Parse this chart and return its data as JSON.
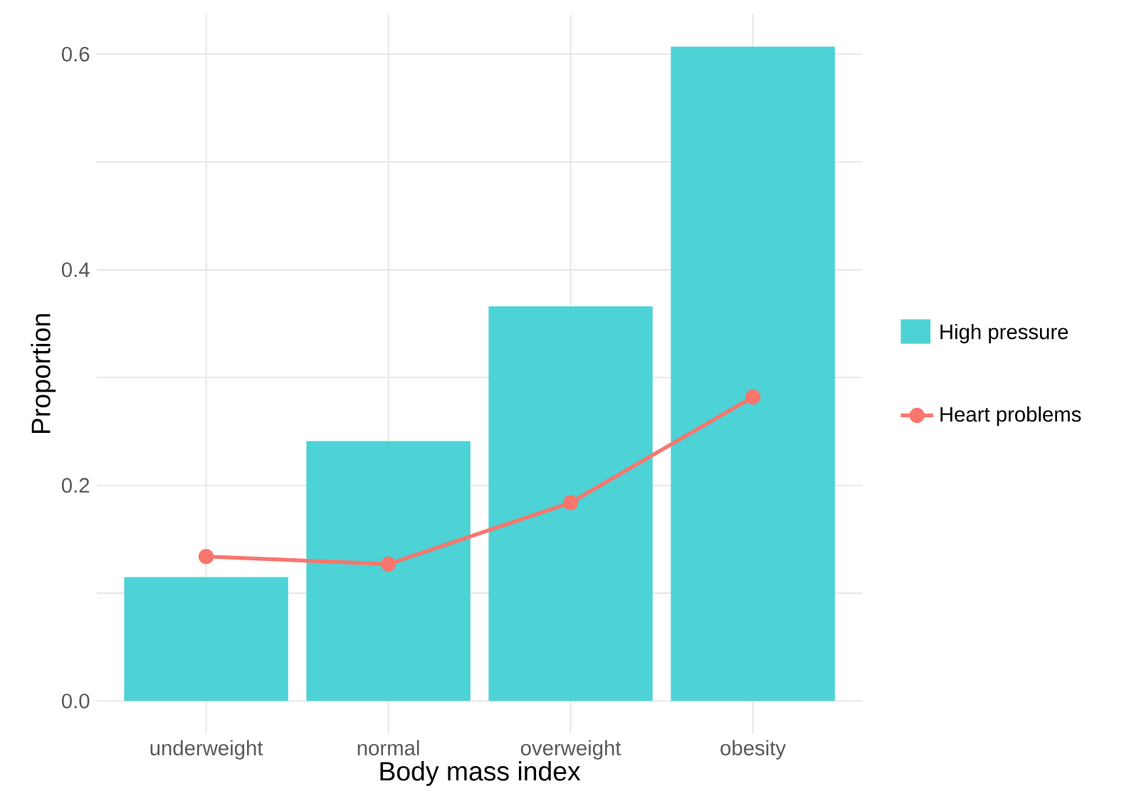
{
  "chart_data": {
    "type": "bar",
    "xlabel": "Body mass index",
    "ylabel": "Proportion",
    "categories": [
      "underweight",
      "normal",
      "overweight",
      "obesity"
    ],
    "series": [
      {
        "name": "High pressure",
        "color": "#4dd2d6",
        "values": [
          0.115,
          0.241,
          0.366,
          0.607
        ]
      },
      {
        "name": "Heart problems",
        "type": "line",
        "color": "#f8766d",
        "values": [
          0.134,
          0.127,
          0.184,
          0.282
        ],
        "marker": "circle",
        "line_style": "solid"
      }
    ],
    "ylim": [
      -0.03,
      0.637
    ],
    "yticks": [
      {
        "value": 0,
        "label": "0.0"
      },
      {
        "value": 0.1,
        "label": null
      },
      0.2,
      {
        "value": 0.3,
        "label": null
      },
      0.4,
      {
        "value": 0.5,
        "label": null
      },
      0.6
    ],
    "grid": true,
    "legend": "right"
  }
}
